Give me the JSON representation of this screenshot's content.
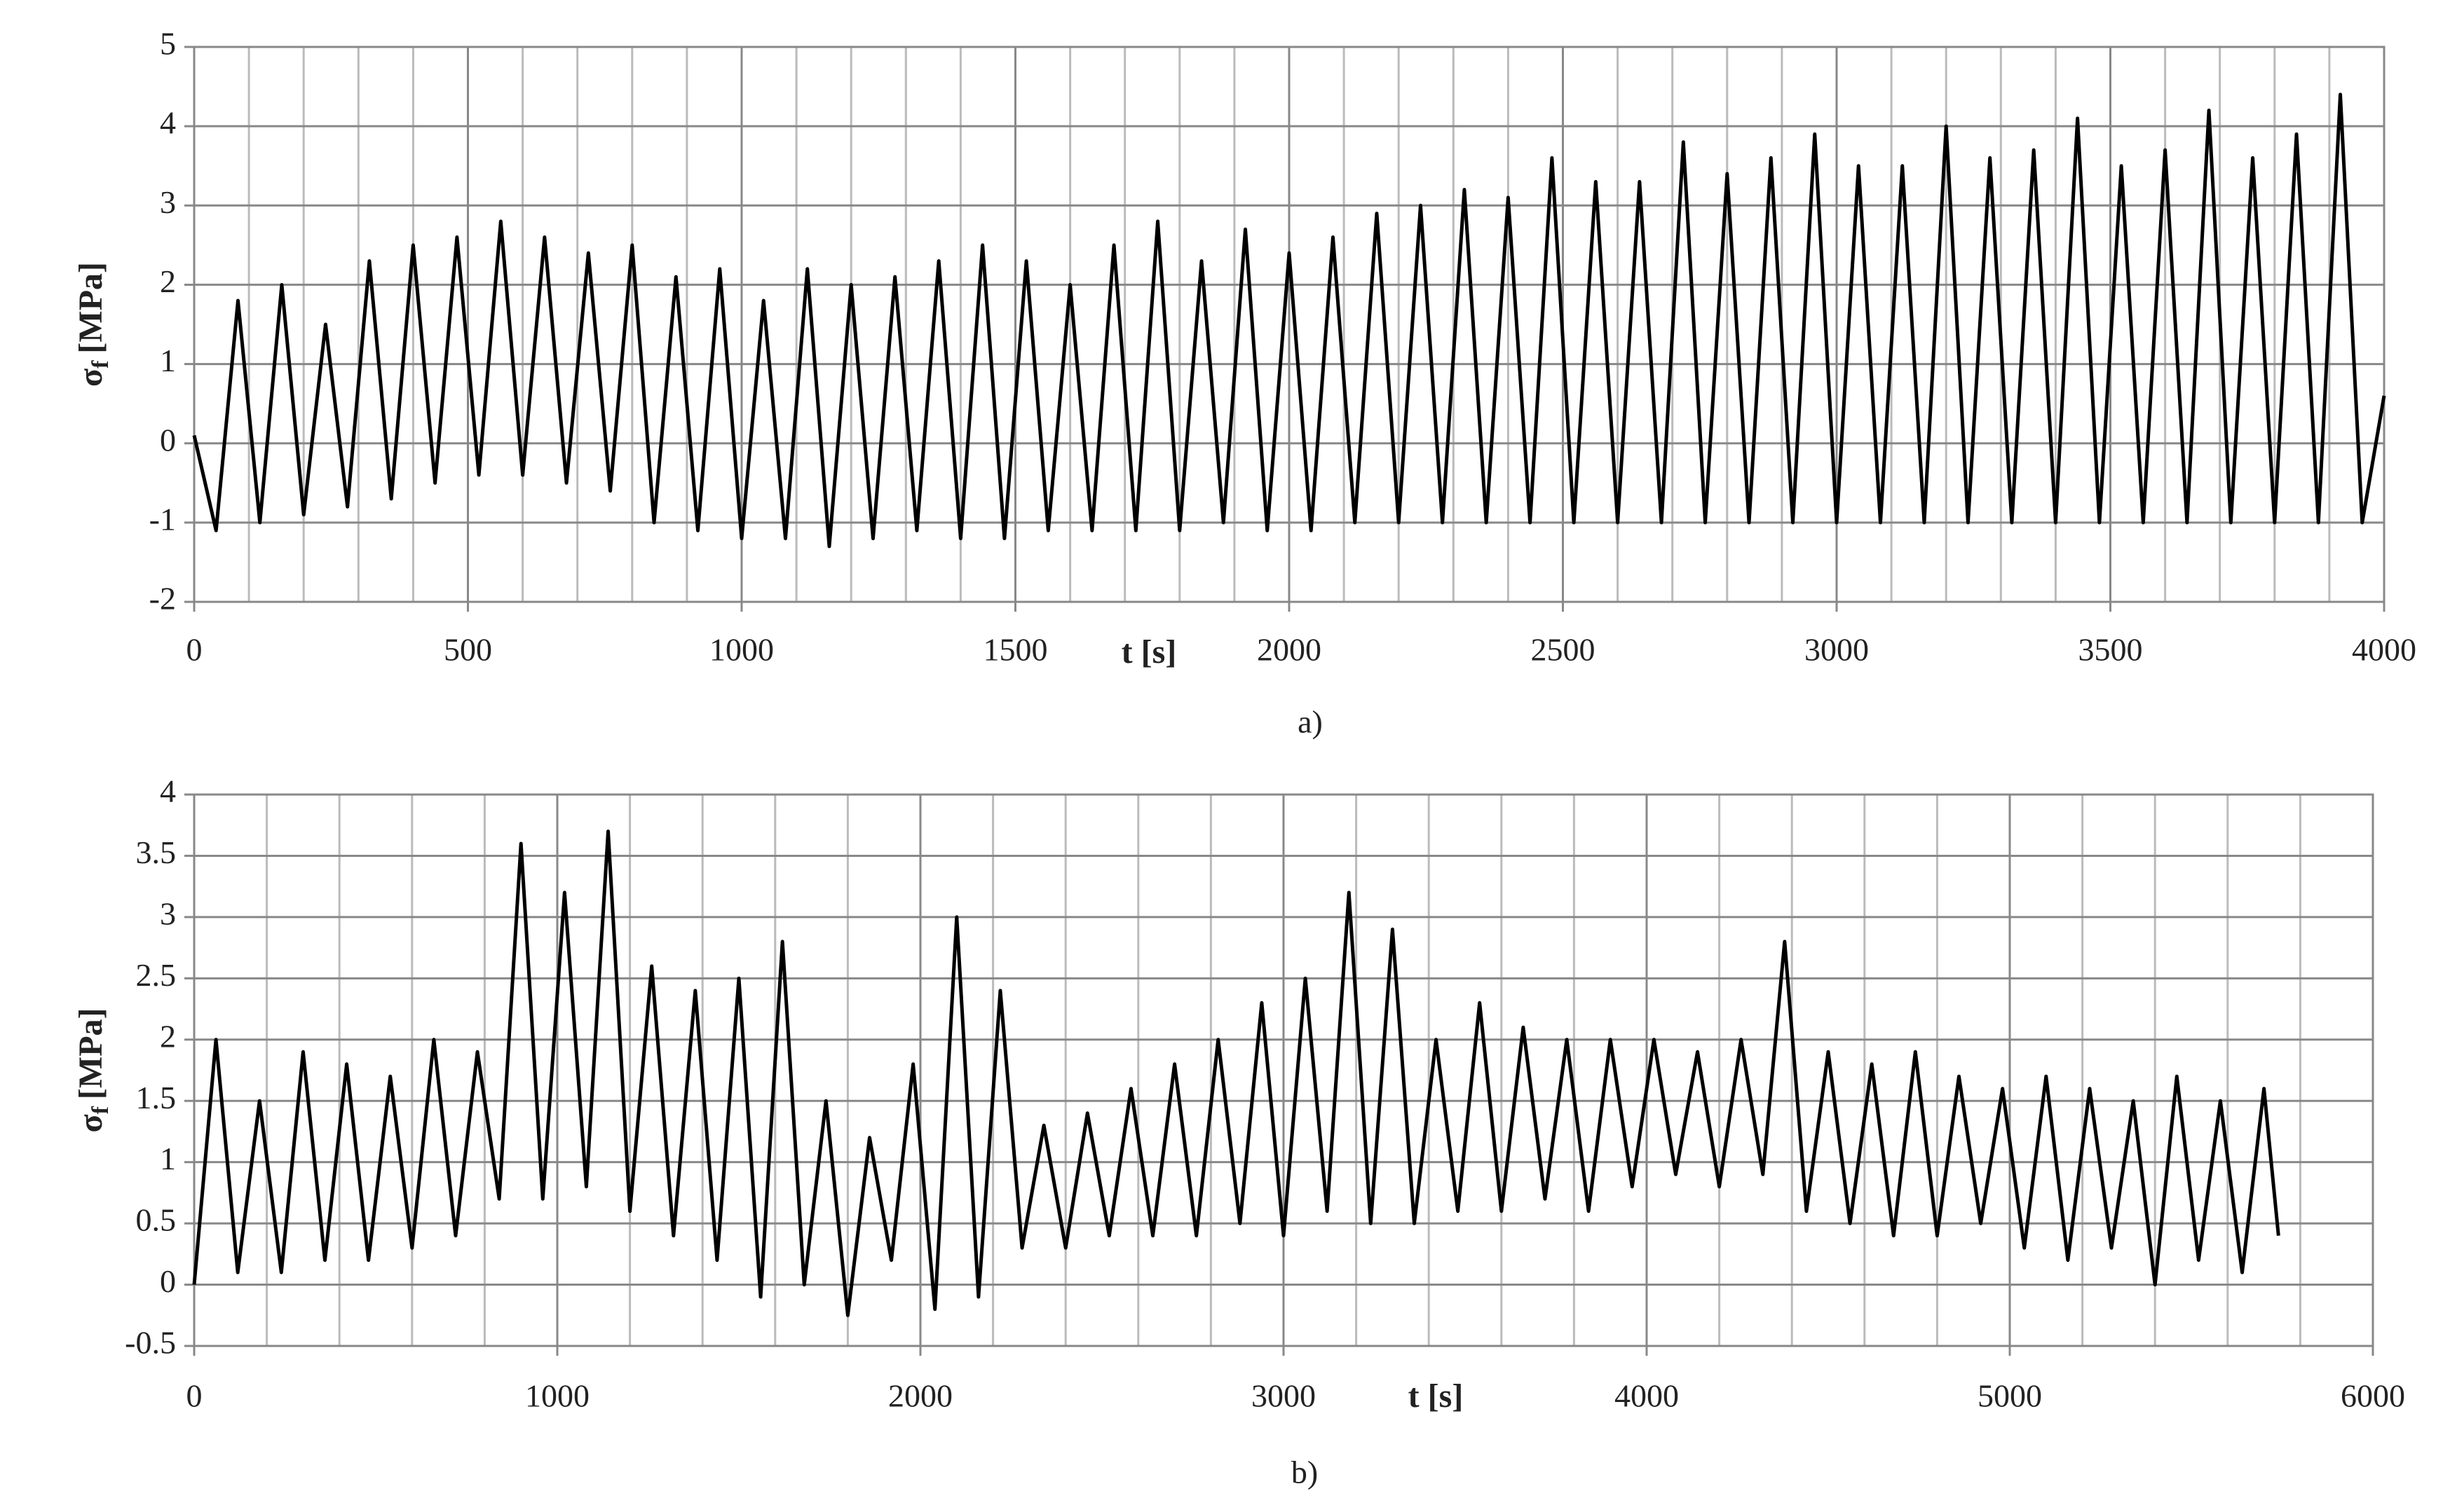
{
  "chart_data": [
    {
      "type": "line",
      "caption": "a)",
      "xlabel": "t [s]",
      "ylabel_symbol": "σ",
      "ylabel_subscript": "f",
      "ylabel_unit": "[MPa]",
      "xlim": [
        0,
        4000
      ],
      "xticks": [
        0,
        500,
        1000,
        1500,
        2000,
        2500,
        3000,
        3500,
        4000
      ],
      "ylim": [
        -2,
        5
      ],
      "yticks": [
        -2,
        -1,
        0,
        1,
        2,
        3,
        4,
        5
      ],
      "grid": true,
      "xminor": 100,
      "series": [
        {
          "color": "#000000",
          "x": [
            0,
            40,
            80,
            120,
            160,
            200,
            240,
            280,
            320,
            360,
            400,
            440,
            480,
            520,
            560,
            600,
            640,
            680,
            720,
            760,
            800,
            840,
            880,
            920,
            960,
            1000,
            1040,
            1080,
            1120,
            1160,
            1200,
            1240,
            1280,
            1320,
            1360,
            1400,
            1440,
            1480,
            1520,
            1560,
            1600,
            1640,
            1680,
            1720,
            1760,
            1800,
            1840,
            1880,
            1920,
            1960,
            2000,
            2040,
            2080,
            2120,
            2160,
            2200,
            2240,
            2280,
            2320,
            2360,
            2400,
            2440,
            2480,
            2520,
            2560,
            2600,
            2640,
            2680,
            2720,
            2760,
            2800,
            2840,
            2880,
            2920,
            2960,
            3000,
            3040,
            3080,
            3120,
            3160,
            3200,
            3240,
            3280,
            3320,
            3360,
            3400,
            3440,
            3480,
            3520,
            3560,
            3600,
            3640,
            3680,
            3720,
            3760,
            3800,
            3840,
            3880,
            3920,
            3960,
            4000
          ],
          "values": [
            0.1,
            -1.1,
            1.8,
            -1.0,
            2.0,
            -0.9,
            1.5,
            -0.8,
            2.3,
            -0.7,
            2.5,
            -0.5,
            2.6,
            -0.4,
            2.8,
            -0.4,
            2.6,
            -0.5,
            2.4,
            -0.6,
            2.5,
            -1.0,
            2.1,
            -1.1,
            2.2,
            -1.2,
            1.8,
            -1.2,
            2.2,
            -1.3,
            2.0,
            -1.2,
            2.1,
            -1.1,
            2.3,
            -1.2,
            2.5,
            -1.2,
            2.3,
            -1.1,
            2.0,
            -1.1,
            2.5,
            -1.1,
            2.8,
            -1.1,
            2.3,
            -1.0,
            2.7,
            -1.1,
            2.4,
            -1.1,
            2.6,
            -1.0,
            2.9,
            -1.0,
            3.0,
            -1.0,
            3.2,
            -1.0,
            3.1,
            -1.0,
            3.6,
            -1.0,
            3.3,
            -1.0,
            3.3,
            -1.0,
            3.8,
            -1.0,
            3.4,
            -1.0,
            3.6,
            -1.0,
            3.9,
            -1.0,
            3.5,
            -1.0,
            3.5,
            -1.0,
            4.0,
            -1.0,
            3.6,
            -1.0,
            3.7,
            -1.0,
            4.1,
            -1.0,
            3.5,
            -1.0,
            3.7,
            -1.0,
            4.2,
            -1.0,
            3.6,
            -1.0,
            3.9,
            -1.0,
            4.4,
            -1.0,
            0.6
          ]
        }
      ]
    },
    {
      "type": "line",
      "caption": "b)",
      "xlabel": "t [s]",
      "ylabel_symbol": "σ",
      "ylabel_subscript": "f",
      "ylabel_unit": "[MPa]",
      "xlim": [
        0,
        6000
      ],
      "xticks": [
        0,
        1000,
        2000,
        3000,
        4000,
        5000,
        6000
      ],
      "ylim": [
        -0.5,
        4
      ],
      "yticks": [
        -0.5,
        0,
        0.5,
        1,
        1.5,
        2,
        2.5,
        3,
        3.5,
        4
      ],
      "grid": true,
      "xminor": 200,
      "series": [
        {
          "color": "#000000",
          "x": [
            0,
            60,
            120,
            180,
            240,
            300,
            360,
            420,
            480,
            540,
            600,
            660,
            720,
            780,
            840,
            900,
            960,
            1020,
            1080,
            1140,
            1200,
            1260,
            1320,
            1380,
            1440,
            1500,
            1560,
            1620,
            1680,
            1740,
            1800,
            1860,
            1920,
            1980,
            2040,
            2100,
            2160,
            2220,
            2280,
            2340,
            2400,
            2460,
            2520,
            2580,
            2640,
            2700,
            2760,
            2820,
            2880,
            2940,
            3000,
            3060,
            3120,
            3180,
            3240,
            3300,
            3360,
            3420,
            3480,
            3540,
            3600,
            3660,
            3720,
            3780,
            3840,
            3900,
            3960,
            4020,
            4080,
            4140,
            4200,
            4260,
            4320,
            4380,
            4440,
            4500,
            4560,
            4620,
            4680,
            4740,
            4800,
            4860,
            4920,
            4980,
            5040,
            5100,
            5160,
            5220,
            5280,
            5340,
            5400,
            5460,
            5520,
            5580,
            5640,
            5700,
            5740
          ],
          "values": [
            0.0,
            2.0,
            0.1,
            1.5,
            0.1,
            1.9,
            0.2,
            1.8,
            0.2,
            1.7,
            0.3,
            2.0,
            0.4,
            1.9,
            0.7,
            3.6,
            0.7,
            3.2,
            0.8,
            3.7,
            0.6,
            2.6,
            0.4,
            2.4,
            0.2,
            2.5,
            -0.1,
            2.8,
            0.0,
            1.5,
            -0.25,
            1.2,
            0.2,
            1.8,
            -0.2,
            3.0,
            -0.1,
            2.4,
            0.3,
            1.3,
            0.3,
            1.4,
            0.4,
            1.6,
            0.4,
            1.8,
            0.4,
            2.0,
            0.5,
            2.3,
            0.4,
            2.5,
            0.6,
            3.2,
            0.5,
            2.9,
            0.5,
            2.0,
            0.6,
            2.3,
            0.6,
            2.1,
            0.7,
            2.0,
            0.6,
            2.0,
            0.8,
            2.0,
            0.9,
            1.9,
            0.8,
            2.0,
            0.9,
            2.8,
            0.6,
            1.9,
            0.5,
            1.8,
            0.4,
            1.9,
            0.4,
            1.7,
            0.5,
            1.6,
            0.3,
            1.7,
            0.2,
            1.6,
            0.3,
            1.5,
            0.0,
            1.7,
            0.2,
            1.5,
            0.1,
            1.6,
            0.4
          ]
        }
      ]
    }
  ]
}
